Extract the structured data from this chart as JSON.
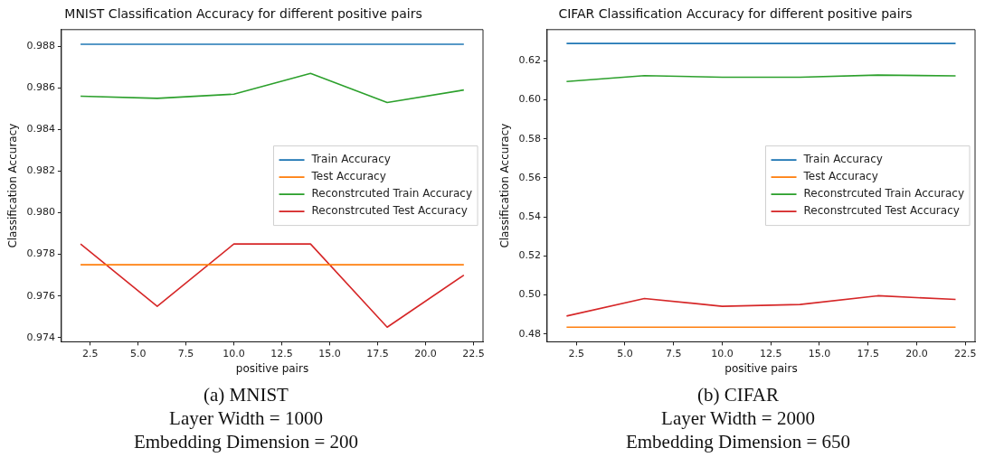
{
  "chart_data": [
    {
      "type": "line",
      "title": "MNIST Classification Accuracy for different positive pairs",
      "xlabel": "positive pairs",
      "ylabel": "Classification Accuracy",
      "x": [
        2,
        6,
        10,
        14,
        18,
        22
      ],
      "series": [
        {
          "name": "Train Accuracy",
          "color": "#1f77b4",
          "values": [
            0.9881,
            0.9881,
            0.9881,
            0.9881,
            0.9881,
            0.9881
          ]
        },
        {
          "name": "Test Accuracy",
          "color": "#ff7f0e",
          "values": [
            0.9775,
            0.9775,
            0.9775,
            0.9775,
            0.9775,
            0.9775
          ]
        },
        {
          "name": "Reconstrcuted Train Accuracy",
          "color": "#2ca02c",
          "values": [
            0.9856,
            0.9855,
            0.9857,
            0.9867,
            0.9853,
            0.9859
          ]
        },
        {
          "name": "Reconstrcuted Test Accuracy",
          "color": "#d62728",
          "values": [
            0.9785,
            0.9755,
            0.9785,
            0.9785,
            0.9745,
            0.977
          ]
        }
      ],
      "xlim": [
        1,
        23
      ],
      "xticks": [
        2.5,
        {
          "value": 5,
          "label": "5.0"
        },
        7.5,
        {
          "value": 10,
          "label": "10.0"
        },
        12.5,
        {
          "value": 15,
          "label": "15.0"
        },
        17.5,
        {
          "value": 20,
          "label": "20.0"
        },
        22.5
      ],
      "ylim": [
        0.9738,
        0.9888
      ],
      "yticks": [
        0.974,
        0.976,
        0.978,
        {
          "value": 0.98,
          "label": "0.980"
        },
        0.982,
        0.984,
        0.986,
        0.988
      ],
      "grid": false,
      "legend": "center right",
      "marker": "none",
      "line_style": "solid",
      "annotations": [
        "(a) MNIST",
        "Layer Width = 1000",
        "Embedding Dimension = 200"
      ]
    },
    {
      "type": "line",
      "title": "CIFAR Classification Accuracy for different positive pairs",
      "xlabel": "positive pairs",
      "ylabel": "Classification Accuracy",
      "x": [
        2,
        6,
        10,
        14,
        18,
        22
      ],
      "series": [
        {
          "name": "Train Accuracy",
          "color": "#1f77b4",
          "values": [
            0.6289,
            0.6289,
            0.6289,
            0.6289,
            0.6289,
            0.6289
          ]
        },
        {
          "name": "Test Accuracy",
          "color": "#ff7f0e",
          "values": [
            0.4835,
            0.4835,
            0.4835,
            0.4835,
            0.4835,
            0.4835
          ]
        },
        {
          "name": "Reconstrcuted Train Accuracy",
          "color": "#2ca02c",
          "values": [
            0.6094,
            0.6124,
            0.6116,
            0.6116,
            0.6127,
            0.6123
          ]
        },
        {
          "name": "Reconstrcuted Test Accuracy",
          "color": "#d62728",
          "values": [
            0.4892,
            0.4982,
            0.4942,
            0.4951,
            0.4996,
            0.4977
          ]
        }
      ],
      "xlim": [
        1,
        23
      ],
      "xticks": [
        2.5,
        {
          "value": 5,
          "label": "5.0"
        },
        7.5,
        {
          "value": 10,
          "label": "10.0"
        },
        12.5,
        {
          "value": 15,
          "label": "15.0"
        },
        17.5,
        {
          "value": 20,
          "label": "20.0"
        },
        22.5
      ],
      "ylim": [
        0.476,
        0.636
      ],
      "yticks": [
        0.48,
        {
          "value": 0.5,
          "label": "0.50"
        },
        0.52,
        0.54,
        0.56,
        0.58,
        {
          "value": 0.6,
          "label": "0.60"
        },
        0.62
      ],
      "grid": false,
      "legend": "center right",
      "marker": "none",
      "line_style": "solid",
      "annotations": [
        "(b) CIFAR",
        "Layer Width = 2000",
        "Embedding Dimension = 650"
      ]
    }
  ]
}
